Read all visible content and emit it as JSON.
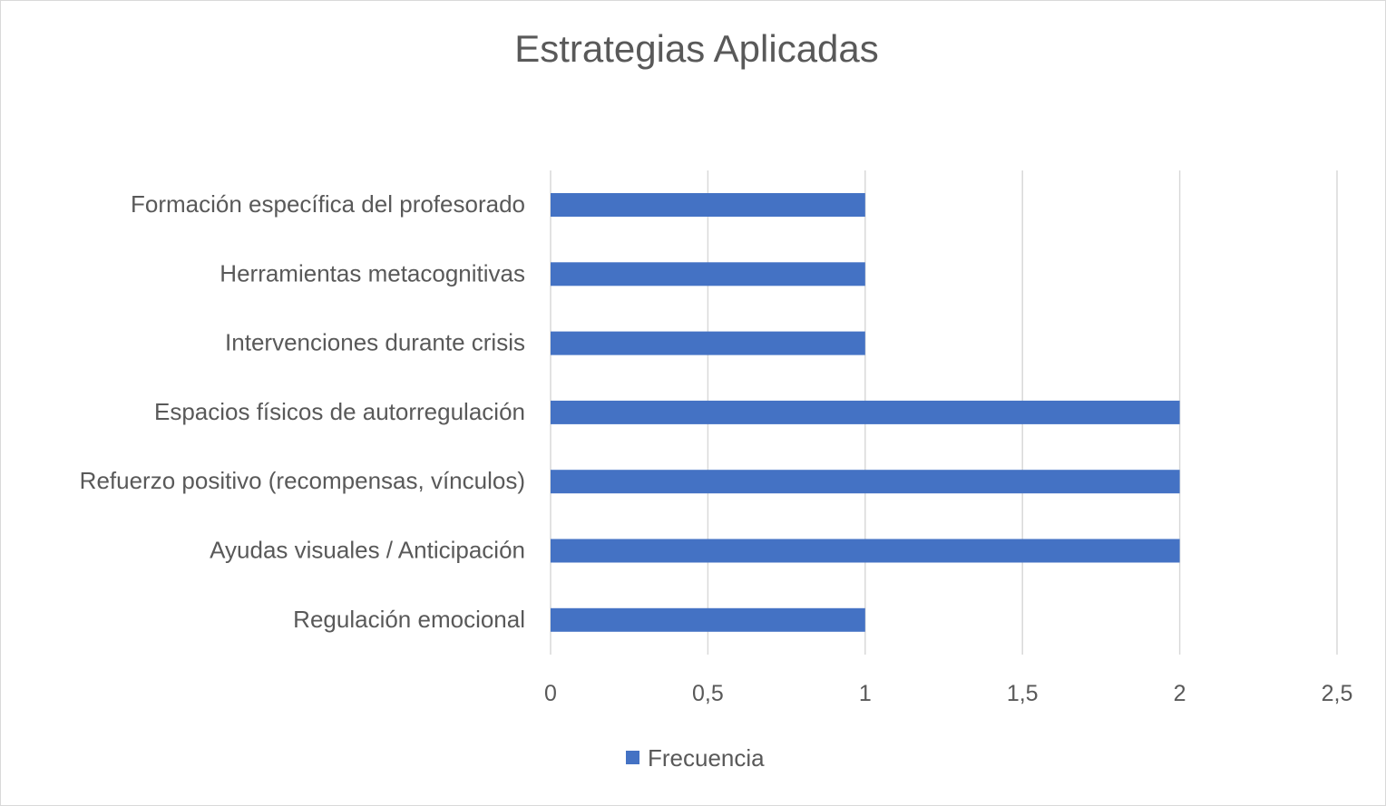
{
  "chart_data": {
    "type": "bar",
    "orientation": "horizontal",
    "title": "Estrategias Aplicadas",
    "categories": [
      "Formación específica del profesorado",
      "Herramientas metacognitivas",
      "Intervenciones durante crisis",
      "Espacios físicos de autorregulación",
      "Refuerzo positivo (recompensas, vínculos)",
      "Ayudas visuales / Anticipación",
      "Regulación emocional"
    ],
    "series": [
      {
        "name": "Frecuencia",
        "values": [
          1,
          1,
          1,
          2,
          2,
          2,
          1
        ],
        "color": "#4472C4"
      }
    ],
    "xlabel": "",
    "ylabel": "",
    "xlim": [
      0,
      2.5
    ],
    "xticks": [
      0,
      0.5,
      1,
      1.5,
      2,
      2.5
    ],
    "xtick_labels": [
      "0",
      "0,5",
      "1",
      "1,5",
      "2",
      "2,5"
    ],
    "grid": true,
    "legend": "bottom"
  }
}
